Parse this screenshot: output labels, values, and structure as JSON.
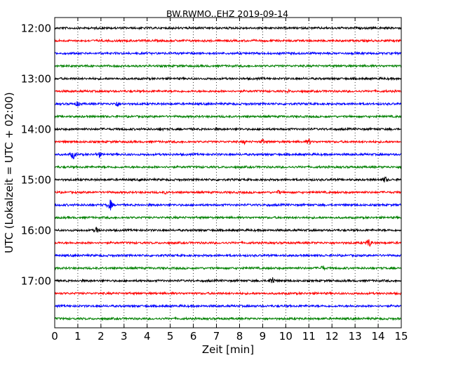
{
  "chart_data": {
    "type": "line",
    "title": "BW.RWMO..EHZ 2019-09-14",
    "xlabel": "Zeit  [min]",
    "ylabel": "UTC (Lokalzeit = UTC + 02:00)",
    "xlim": [
      0,
      15
    ],
    "x_ticks": [
      0,
      1,
      2,
      3,
      4,
      5,
      6,
      7,
      8,
      9,
      10,
      11,
      12,
      13,
      14,
      15
    ],
    "x_tick_labels": [
      "0",
      "1",
      "2",
      "3",
      "4",
      "5",
      "6",
      "7",
      "8",
      "9",
      "10",
      "11",
      "12",
      "13",
      "14",
      "15"
    ],
    "y_tick_labels": [
      "12:00",
      "13:00",
      "14:00",
      "15:00",
      "16:00",
      "17:00"
    ],
    "y_tick_trace_index": [
      0,
      4,
      8,
      12,
      16,
      20
    ],
    "grid": "vertical-dotted",
    "colors": [
      "#000000",
      "#ff0000",
      "#0000ff",
      "#008000"
    ],
    "series": [
      {
        "start": "12:00",
        "color": "#000000",
        "events": [
          [
            14.8,
            2
          ]
        ]
      },
      {
        "start": "12:15",
        "color": "#ff0000",
        "events": [
          [
            6.0,
            2
          ],
          [
            11.0,
            2
          ]
        ]
      },
      {
        "start": "12:30",
        "color": "#0000ff",
        "events": [
          [
            6.5,
            2
          ],
          [
            10.0,
            1.5
          ]
        ]
      },
      {
        "start": "12:45",
        "color": "#008000",
        "events": [
          [
            6.0,
            1.5
          ]
        ]
      },
      {
        "start": "13:00",
        "color": "#000000",
        "events": [
          [
            3.0,
            2
          ]
        ]
      },
      {
        "start": "13:15",
        "color": "#ff0000",
        "events": [
          [
            4.0,
            2
          ],
          [
            10.1,
            3
          ]
        ]
      },
      {
        "start": "13:30",
        "color": "#0000ff",
        "events": [
          [
            1.0,
            5
          ],
          [
            2.7,
            6
          ],
          [
            12.5,
            2
          ]
        ]
      },
      {
        "start": "13:45",
        "color": "#008000",
        "events": [
          [
            4.3,
            2
          ],
          [
            11.7,
            2
          ]
        ]
      },
      {
        "start": "14:00",
        "color": "#000000",
        "events": [
          [
            4.6,
            4
          ],
          [
            5.8,
            1.5
          ]
        ]
      },
      {
        "start": "14:15",
        "color": "#ff0000",
        "events": [
          [
            8.2,
            4
          ],
          [
            9.0,
            5
          ],
          [
            11.0,
            6
          ]
        ]
      },
      {
        "start": "14:30",
        "color": "#0000ff",
        "events": [
          [
            0.8,
            8
          ],
          [
            1.9,
            6
          ],
          [
            3.3,
            2
          ]
        ]
      },
      {
        "start": "14:45",
        "color": "#008000",
        "events": [
          [
            3.5,
            2
          ],
          [
            8.0,
            1.5
          ],
          [
            14.2,
            1.5
          ]
        ]
      },
      {
        "start": "15:00",
        "color": "#000000",
        "events": [
          [
            3.7,
            3
          ],
          [
            14.3,
            6
          ]
        ]
      },
      {
        "start": "15:15",
        "color": "#ff0000",
        "events": [
          [
            4.8,
            3
          ],
          [
            9.7,
            4
          ]
        ]
      },
      {
        "start": "15:30",
        "color": "#0000ff",
        "events": [
          [
            1.5,
            3
          ],
          [
            2.4,
            9
          ],
          [
            9.2,
            2.5
          ]
        ]
      },
      {
        "start": "15:45",
        "color": "#008000",
        "events": [
          [
            3.5,
            2
          ]
        ]
      },
      {
        "start": "16:00",
        "color": "#000000",
        "events": [
          [
            0.7,
            2
          ],
          [
            1.8,
            6
          ]
        ]
      },
      {
        "start": "16:15",
        "color": "#ff0000",
        "events": [
          [
            13.6,
            8
          ]
        ]
      },
      {
        "start": "16:30",
        "color": "#0000ff",
        "events": [
          [
            11.7,
            2.5
          ]
        ]
      },
      {
        "start": "16:45",
        "color": "#008000",
        "events": [
          [
            11.6,
            5
          ]
        ]
      },
      {
        "start": "17:00",
        "color": "#000000",
        "events": [
          [
            9.4,
            8
          ],
          [
            2.1,
            1.5
          ]
        ]
      },
      {
        "start": "17:15",
        "color": "#ff0000",
        "events": [
          [
            9.2,
            1.5
          ]
        ]
      },
      {
        "start": "17:30",
        "color": "#0000ff",
        "events": [
          [
            12.2,
            1.5
          ]
        ]
      },
      {
        "start": "17:45",
        "color": "#008000",
        "events": [
          [
            4.0,
            1.5
          ]
        ]
      }
    ]
  }
}
